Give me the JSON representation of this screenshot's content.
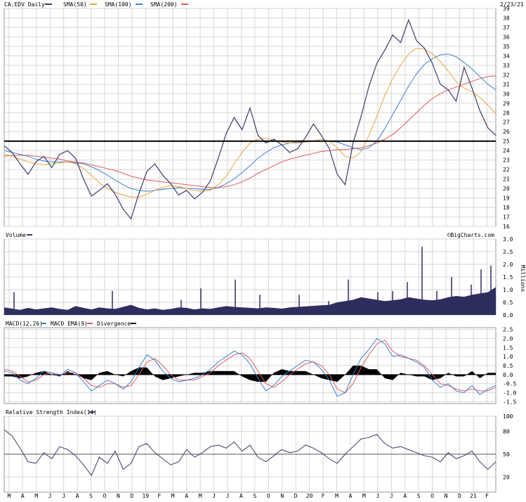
{
  "chart_data": {
    "type": "line",
    "symbol_label": "CA:EDV Daily",
    "date_label": "2/23/21",
    "source": "©BigCharts.com",
    "legend": {
      "price": {
        "name": "CA:EDV Daily",
        "color": "#3a3a6e"
      },
      "sma50": {
        "name": "SMA(50)",
        "color": "#e8a33b"
      },
      "sma100": {
        "name": "SMA(100)",
        "color": "#3a7fd5"
      },
      "sma200": {
        "name": "SMA(200)",
        "color": "#e05a5a"
      }
    },
    "x_tick_labels": [
      "M",
      "A",
      "M",
      "J",
      "J",
      "A",
      "S",
      "O",
      "N",
      "D",
      "19",
      "F",
      "M",
      "A",
      "M",
      "J",
      "J",
      "A",
      "S",
      "O",
      "N",
      "D",
      "20",
      "F",
      "M",
      "A",
      "M",
      "J",
      "J",
      "A",
      "S",
      "O",
      "N",
      "D",
      "21",
      "F"
    ],
    "price_panel": {
      "ylim": [
        16,
        39
      ],
      "yticks": [
        16,
        17,
        18,
        19,
        20,
        21,
        22,
        23,
        24,
        25,
        26,
        27,
        28,
        29,
        30,
        31,
        32,
        33,
        34,
        35,
        36,
        37,
        38,
        39
      ],
      "reference_line": 25,
      "price": [
        24.5,
        23.8,
        22.6,
        21.5,
        22.8,
        23.4,
        22.2,
        23.6,
        24.0,
        23.2,
        21.0,
        19.2,
        19.8,
        20.5,
        19.4,
        17.8,
        16.8,
        19.5,
        21.8,
        22.6,
        21.4,
        20.5,
        19.3,
        19.8,
        18.9,
        19.6,
        20.8,
        23.2,
        25.8,
        27.5,
        26.2,
        28.5,
        25.6,
        24.8,
        25.2,
        24.6,
        23.8,
        24.2,
        25.4,
        26.8,
        25.6,
        24.2,
        21.5,
        20.4,
        24.8,
        27.6,
        30.8,
        33.2,
        34.6,
        36.2,
        35.4,
        37.8,
        35.6,
        34.8,
        33.2,
        31.0,
        30.4,
        29.2,
        32.8,
        30.6,
        28.2,
        26.4,
        25.6
      ],
      "sma50": [
        23.6,
        23.4,
        23.1,
        22.8,
        22.6,
        22.5,
        22.6,
        22.7,
        22.8,
        22.6,
        22.1,
        21.4,
        20.6,
        20.0,
        19.6,
        19.3,
        19.1,
        19.1,
        19.4,
        19.8,
        20.1,
        20.3,
        20.2,
        20.0,
        19.8,
        19.7,
        19.8,
        20.4,
        21.3,
        22.6,
        23.8,
        24.8,
        25.2,
        25.3,
        25.1,
        24.9,
        24.8,
        24.8,
        24.9,
        25.0,
        25.2,
        25.0,
        24.3,
        23.4,
        23.2,
        23.9,
        25.6,
        27.6,
        29.8,
        31.6,
        33.0,
        34.2,
        34.8,
        34.7,
        34.2,
        33.4,
        32.4,
        31.3,
        30.6,
        30.2,
        29.6,
        28.8,
        27.9
      ],
      "sma100": [
        24.0,
        23.8,
        23.6,
        23.4,
        23.1,
        22.9,
        22.8,
        22.8,
        22.8,
        22.7,
        22.6,
        22.3,
        21.9,
        21.4,
        20.9,
        20.4,
        20.0,
        19.8,
        19.7,
        19.8,
        19.9,
        20.0,
        20.1,
        20.0,
        20.0,
        19.9,
        19.9,
        20.1,
        20.5,
        21.0,
        21.7,
        22.4,
        23.2,
        23.8,
        24.3,
        24.6,
        24.8,
        24.9,
        24.9,
        25.0,
        25.0,
        25.0,
        24.9,
        24.6,
        24.3,
        24.1,
        24.3,
        25.0,
        26.3,
        27.8,
        29.3,
        30.8,
        32.1,
        33.1,
        33.7,
        34.1,
        34.2,
        33.9,
        33.3,
        32.6,
        31.8,
        31.0,
        30.4
      ],
      "sma200": [
        23.4,
        23.5,
        23.5,
        23.5,
        23.4,
        23.3,
        23.2,
        23.1,
        22.9,
        22.8,
        22.7,
        22.5,
        22.3,
        22.1,
        21.9,
        21.6,
        21.3,
        21.1,
        20.9,
        20.8,
        20.7,
        20.6,
        20.5,
        20.4,
        20.3,
        20.2,
        20.1,
        20.1,
        20.2,
        20.4,
        20.7,
        21.1,
        21.6,
        22.0,
        22.4,
        22.8,
        23.1,
        23.3,
        23.5,
        23.7,
        23.9,
        24.0,
        24.1,
        24.1,
        24.2,
        24.3,
        24.5,
        24.8,
        25.2,
        25.7,
        26.4,
        27.2,
        28.0,
        28.8,
        29.5,
        30.0,
        30.4,
        30.7,
        31.0,
        31.3,
        31.6,
        31.8,
        31.9
      ]
    },
    "volume_panel": {
      "label": "Volume",
      "unit_label": "Millions",
      "ylim": [
        0,
        3.0
      ],
      "yticks": [
        0.0,
        0.5,
        1.0,
        1.5,
        2.0,
        2.5,
        3.0
      ],
      "values": [
        0.3,
        0.25,
        0.2,
        0.28,
        0.22,
        0.26,
        0.3,
        0.24,
        0.2,
        0.35,
        0.28,
        0.22,
        0.3,
        0.26,
        0.24,
        0.32,
        0.4,
        0.28,
        0.22,
        0.26,
        0.2,
        0.24,
        0.3,
        0.28,
        0.22,
        0.26,
        0.24,
        0.3,
        0.35,
        0.32,
        0.3,
        0.28,
        0.26,
        0.3,
        0.28,
        0.25,
        0.3,
        0.32,
        0.34,
        0.36,
        0.38,
        0.4,
        0.5,
        0.55,
        0.6,
        0.7,
        0.65,
        0.6,
        0.55,
        0.58,
        0.62,
        0.7,
        0.65,
        0.6,
        0.58,
        0.62,
        0.7,
        0.75,
        0.72,
        0.8,
        0.85,
        0.9,
        1.1
      ],
      "spikes": [
        [
          0.02,
          0.9
        ],
        [
          0.22,
          0.95
        ],
        [
          0.36,
          0.6
        ],
        [
          0.4,
          1.05
        ],
        [
          0.47,
          1.4
        ],
        [
          0.52,
          0.8
        ],
        [
          0.6,
          0.8
        ],
        [
          0.66,
          0.55
        ],
        [
          0.7,
          1.4
        ],
        [
          0.76,
          0.9
        ],
        [
          0.79,
          0.95
        ],
        [
          0.82,
          1.3
        ],
        [
          0.85,
          2.7
        ],
        [
          0.88,
          0.95
        ],
        [
          0.91,
          1.5
        ],
        [
          0.95,
          1.2
        ],
        [
          0.97,
          1.8
        ],
        [
          0.99,
          1.95
        ]
      ]
    },
    "macd_panel": {
      "legend": {
        "macd": {
          "name": "MACD(12,26)",
          "color": "#3a7fd5"
        },
        "ema": {
          "name": "MACD EMA(9)",
          "color": "#e05a5a"
        },
        "div": {
          "name": "Divergence",
          "color": "#000000"
        }
      },
      "ylim": [
        -1.6,
        2.6
      ],
      "yticks": [
        -1.5,
        -1.0,
        -0.5,
        0.0,
        0.5,
        1.0,
        1.5,
        2.0,
        2.5
      ],
      "macd": [
        0.2,
        0.1,
        -0.3,
        -0.5,
        -0.2,
        0.2,
        0.1,
        -0.1,
        0.3,
        0.1,
        -0.4,
        -0.9,
        -0.6,
        -0.3,
        -0.5,
        -0.8,
        -0.4,
        0.4,
        1.1,
        0.8,
        0.2,
        -0.2,
        -0.4,
        -0.3,
        -0.2,
        0.0,
        0.3,
        0.7,
        1.0,
        1.3,
        1.1,
        0.6,
        -0.2,
        -0.9,
        -0.6,
        -0.1,
        0.2,
        0.5,
        0.8,
        0.7,
        0.3,
        -0.3,
        -1.2,
        -1.0,
        0.0,
        0.9,
        1.4,
        2.0,
        1.7,
        1.0,
        1.1,
        0.9,
        0.7,
        0.4,
        -0.3,
        -0.7,
        -0.5,
        -0.9,
        -1.0,
        -0.6,
        -1.1,
        -0.8,
        -0.6
      ],
      "ema": [
        0.3,
        0.2,
        -0.1,
        -0.4,
        -0.3,
        0.0,
        0.1,
        0.0,
        0.1,
        0.1,
        -0.2,
        -0.6,
        -0.7,
        -0.5,
        -0.5,
        -0.7,
        -0.6,
        0.0,
        0.7,
        0.9,
        0.5,
        0.0,
        -0.3,
        -0.3,
        -0.3,
        -0.1,
        0.1,
        0.5,
        0.8,
        1.1,
        1.2,
        0.9,
        0.2,
        -0.5,
        -0.7,
        -0.4,
        0.0,
        0.3,
        0.6,
        0.7,
        0.5,
        0.0,
        -0.8,
        -1.0,
        -0.5,
        0.4,
        1.1,
        1.7,
        1.9,
        1.3,
        1.0,
        0.9,
        0.8,
        0.5,
        0.0,
        -0.5,
        -0.6,
        -0.8,
        -0.9,
        -0.8,
        -0.9,
        -0.9,
        -0.7
      ]
    },
    "rsi_panel": {
      "label": "Relative Strength Index(14)",
      "color": "#3a3a6e",
      "ylim": [
        0,
        100
      ],
      "yticks": [
        20,
        50,
        80,
        100
      ],
      "reference_line": 50,
      "values": [
        82,
        74,
        58,
        40,
        38,
        52,
        44,
        60,
        56,
        48,
        36,
        22,
        46,
        38,
        54,
        30,
        38,
        60,
        64,
        52,
        44,
        36,
        40,
        56,
        46,
        52,
        60,
        62,
        58,
        66,
        54,
        62,
        46,
        40,
        48,
        56,
        52,
        54,
        62,
        58,
        52,
        44,
        38,
        50,
        60,
        70,
        72,
        76,
        64,
        58,
        60,
        56,
        52,
        48,
        46,
        40,
        52,
        44,
        48,
        54,
        40,
        30,
        40
      ]
    }
  }
}
